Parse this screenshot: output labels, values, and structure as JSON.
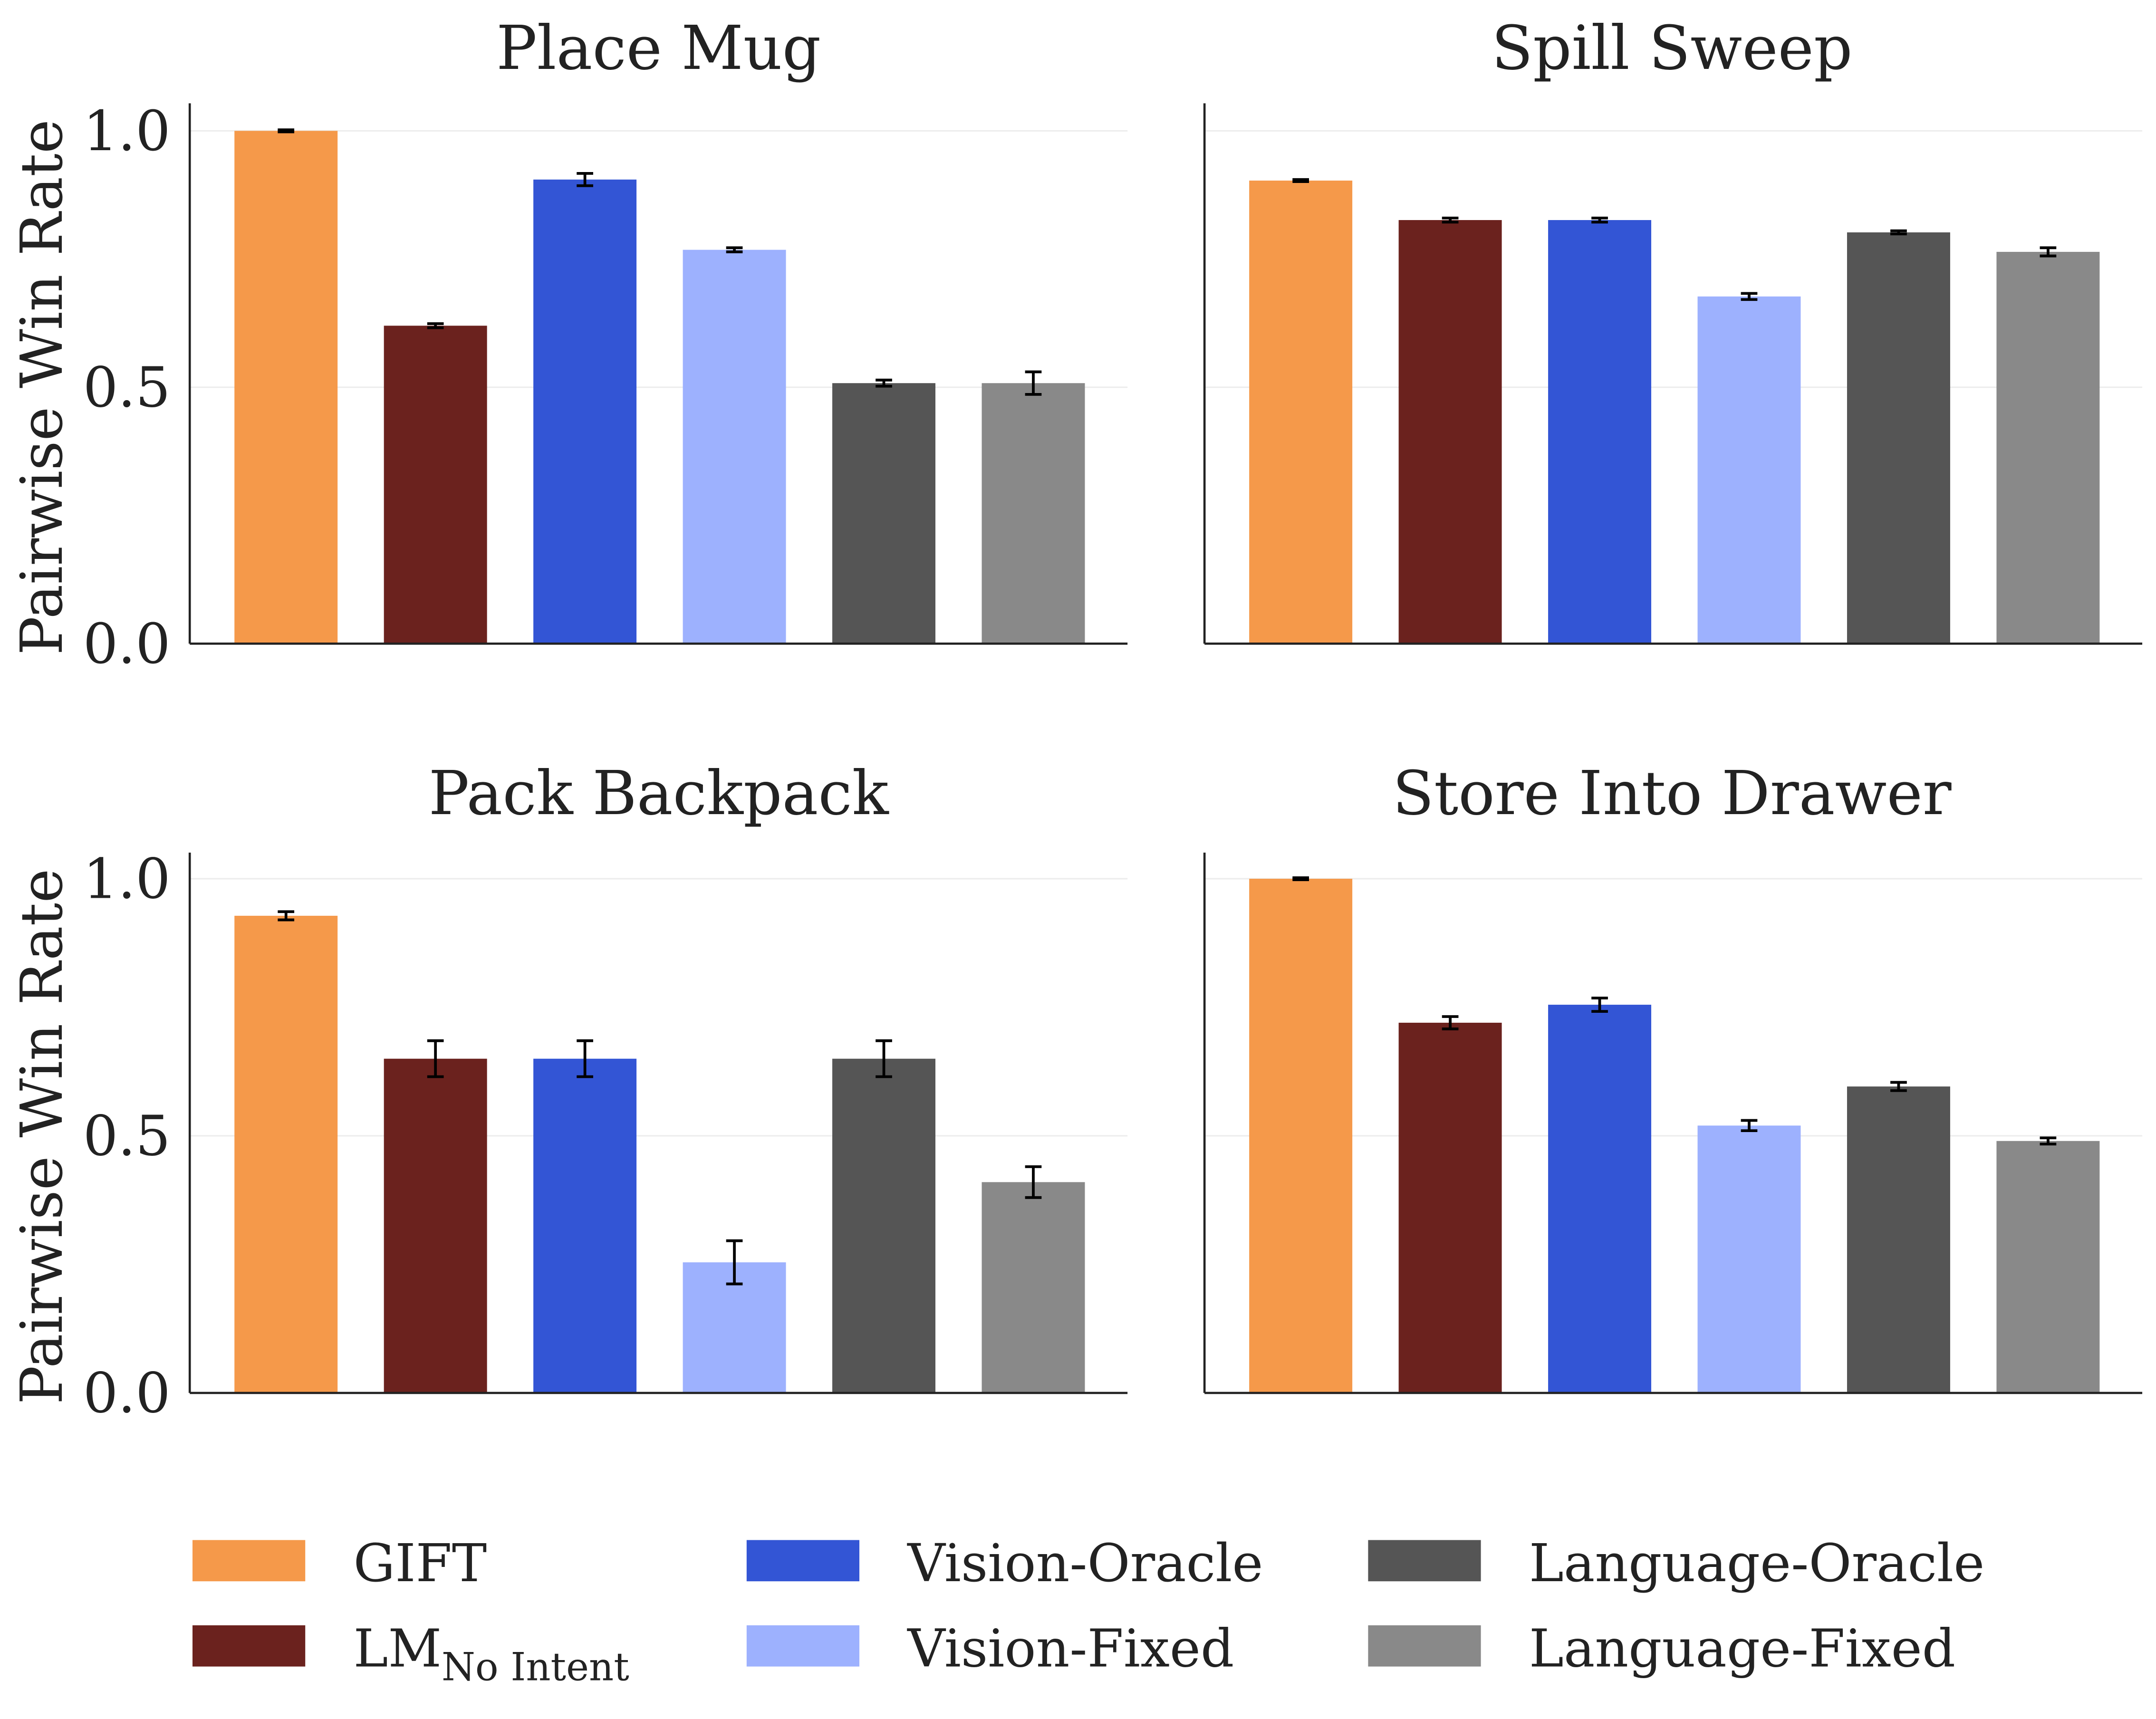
{
  "chart_data": [
    {
      "type": "bar",
      "title": "Place Mug",
      "ylabel": "Pairwise Win Rate",
      "ylim": [
        0,
        1.05
      ],
      "yticks": [
        "0.0",
        "0.5",
        "1.0"
      ],
      "grid": true,
      "categories": [
        "GIFT",
        "LM No Intent",
        "Vision-Oracle",
        "Vision-Fixed",
        "Language-Oracle",
        "Language-Fixed"
      ],
      "values": [
        1.0,
        0.62,
        0.905,
        0.768,
        0.508,
        0.508
      ],
      "errors": [
        0.002,
        0.004,
        0.012,
        0.004,
        0.006,
        0.022
      ]
    },
    {
      "type": "bar",
      "title": "Spill Sweep",
      "ylabel": "",
      "ylim": [
        0,
        1.05
      ],
      "yticks": [],
      "grid": true,
      "categories": [
        "GIFT",
        "LM No Intent",
        "Vision-Oracle",
        "Vision-Fixed",
        "Language-Oracle",
        "Language-Fixed"
      ],
      "values": [
        0.903,
        0.826,
        0.826,
        0.677,
        0.802,
        0.764
      ],
      "errors": [
        0.002,
        0.004,
        0.004,
        0.006,
        0.003,
        0.008
      ]
    },
    {
      "type": "bar",
      "title": "Pack Backpack",
      "ylabel": "Pairwise Win Rate",
      "ylim": [
        0,
        1.05
      ],
      "yticks": [
        "0.0",
        "0.5",
        "1.0"
      ],
      "grid": true,
      "categories": [
        "GIFT",
        "LM No Intent",
        "Vision-Oracle",
        "Vision-Fixed",
        "Language-Oracle",
        "Language-Fixed"
      ],
      "values": [
        0.928,
        0.65,
        0.65,
        0.254,
        0.65,
        0.41
      ],
      "errors": [
        0.008,
        0.035,
        0.035,
        0.042,
        0.035,
        0.03
      ]
    },
    {
      "type": "bar",
      "title": "Store Into Drawer",
      "ylabel": "",
      "ylim": [
        0,
        1.05
      ],
      "yticks": [],
      "grid": true,
      "categories": [
        "GIFT",
        "LM No Intent",
        "Vision-Oracle",
        "Vision-Fixed",
        "Language-Oracle",
        "Language-Fixed"
      ],
      "values": [
        1.0,
        0.72,
        0.755,
        0.52,
        0.596,
        0.49
      ],
      "errors": [
        0.002,
        0.012,
        0.013,
        0.01,
        0.008,
        0.006
      ]
    }
  ],
  "legend": {
    "placement": "bottom",
    "items": [
      {
        "label": "GIFT",
        "sub": "",
        "color": "#f5994a"
      },
      {
        "label": "LM",
        "sub": "No Intent",
        "color": "#6b221e"
      },
      {
        "label": "Vision-Oracle",
        "sub": "",
        "color": "#3355d5"
      },
      {
        "label": "Vision-Fixed",
        "sub": "",
        "color": "#9db1fe"
      },
      {
        "label": "Language-Oracle",
        "sub": "",
        "color": "#555555"
      },
      {
        "label": "Language-Fixed",
        "sub": "",
        "color": "#898989"
      }
    ]
  }
}
